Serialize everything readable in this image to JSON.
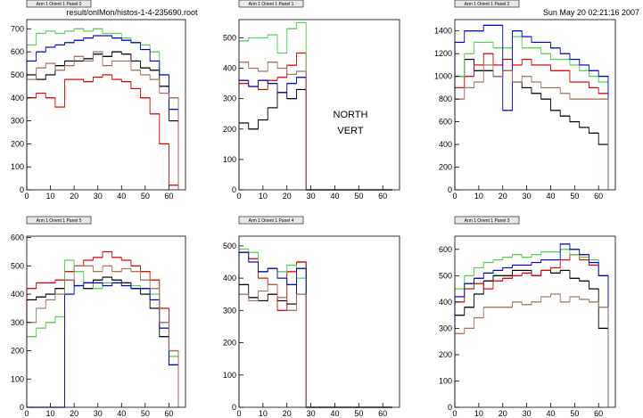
{
  "canvas": {
    "file": "result/onlMon/histos-1-4-235690.root",
    "date": "Sun May 20 02:21:16 2007"
  },
  "chart_data": [
    {
      "type": "histogram",
      "title": "Arm 1 Orient 1 Panel 0",
      "bins": [
        0,
        4,
        8,
        12,
        16,
        20,
        24,
        28,
        32,
        36,
        40,
        44,
        48,
        52,
        56,
        60,
        64
      ],
      "xlim": [
        0,
        67
      ],
      "xticks": [
        0,
        10,
        20,
        30,
        40,
        50,
        60
      ],
      "ylim": [
        0,
        740
      ],
      "yticks": [
        0,
        100,
        200,
        300,
        400,
        500,
        600,
        700
      ],
      "series": [
        {
          "color": "#000000",
          "values": [
            500,
            480,
            500,
            540,
            560,
            560,
            570,
            590,
            580,
            600,
            590,
            560,
            530,
            520,
            450,
            300
          ]
        },
        {
          "color": "#dd0000",
          "values": [
            400,
            420,
            400,
            360,
            480,
            480,
            470,
            490,
            500,
            480,
            470,
            440,
            400,
            330,
            200,
            20
          ]
        },
        {
          "color": "#55cc55",
          "values": [
            630,
            680,
            690,
            680,
            690,
            700,
            690,
            700,
            680,
            680,
            660,
            640,
            630,
            600,
            500,
            400
          ]
        },
        {
          "color": "#0000cc",
          "values": [
            560,
            600,
            620,
            630,
            640,
            650,
            660,
            670,
            670,
            660,
            650,
            640,
            610,
            560,
            500,
            350
          ]
        },
        {
          "color": "#a07060",
          "values": [
            480,
            530,
            550,
            520,
            540,
            580,
            560,
            600,
            540,
            560,
            560,
            520,
            500,
            480,
            420,
            400
          ]
        }
      ]
    },
    {
      "type": "histogram",
      "title": "Arm 1 Orient 1 Panel 1",
      "annotations": [
        "NORTH",
        "VERT"
      ],
      "bins": [
        0,
        4,
        8,
        12,
        16,
        20,
        24,
        28,
        32,
        36,
        40,
        44,
        48,
        52,
        56,
        60,
        64
      ],
      "xlim": [
        0,
        67
      ],
      "xticks": [
        0,
        10,
        20,
        30,
        40,
        50,
        60
      ],
      "ylim": [
        0,
        560
      ],
      "yticks": [
        0,
        100,
        200,
        300,
        400,
        500
      ],
      "series": [
        {
          "color": "#000000",
          "values": [
            220,
            200,
            230,
            270,
            320,
            300,
            330,
            0,
            0,
            0,
            0,
            0,
            0,
            0,
            0,
            0
          ]
        },
        {
          "color": "#dd0000",
          "values": [
            350,
            340,
            330,
            360,
            370,
            410,
            450,
            0,
            0,
            0,
            0,
            0,
            0,
            0,
            0,
            0
          ]
        },
        {
          "color": "#55cc55",
          "values": [
            490,
            500,
            500,
            510,
            450,
            530,
            550,
            0,
            0,
            0,
            0,
            0,
            0,
            0,
            0,
            0
          ]
        },
        {
          "color": "#0000cc",
          "values": [
            360,
            340,
            360,
            350,
            320,
            350,
            370,
            0,
            0,
            0,
            0,
            0,
            0,
            0,
            0,
            0
          ]
        },
        {
          "color": "#a07060",
          "values": [
            420,
            400,
            390,
            420,
            400,
            380,
            390,
            0,
            0,
            0,
            0,
            0,
            0,
            0,
            0,
            0
          ]
        }
      ]
    },
    {
      "type": "histogram",
      "title": "Arm 1 Orient 1 Panel 2",
      "bins": [
        0,
        4,
        8,
        12,
        16,
        20,
        24,
        28,
        32,
        36,
        40,
        44,
        48,
        52,
        56,
        60,
        64
      ],
      "xlim": [
        0,
        67
      ],
      "xticks": [
        0,
        10,
        20,
        30,
        40,
        50,
        60
      ],
      "ylim": [
        0,
        1500
      ],
      "yticks": [
        0,
        200,
        400,
        600,
        800,
        1000,
        1200,
        1400
      ],
      "series": [
        {
          "color": "#000000",
          "values": [
            1000,
            1150,
            1050,
            1050,
            1000,
            1050,
            950,
            900,
            850,
            800,
            700,
            650,
            600,
            550,
            500,
            400
          ]
        },
        {
          "color": "#dd0000",
          "values": [
            900,
            1000,
            1100,
            1200,
            1100,
            1150,
            1100,
            1150,
            1100,
            1100,
            1050,
            1050,
            950,
            950,
            900,
            850
          ]
        },
        {
          "color": "#55cc55",
          "values": [
            1000,
            1200,
            1300,
            1300,
            1250,
            1250,
            1350,
            1250,
            1250,
            1200,
            1150,
            1150,
            1100,
            1050,
            1000,
            950
          ]
        },
        {
          "color": "#0000cc",
          "values": [
            1300,
            1400,
            1400,
            1450,
            1450,
            700,
            1400,
            1350,
            1300,
            1300,
            1250,
            1200,
            1150,
            1100,
            1050,
            1000
          ]
        },
        {
          "color": "#a07060",
          "values": [
            800,
            900,
            950,
            1100,
            1000,
            1050,
            950,
            1000,
            950,
            900,
            900,
            850,
            800,
            800,
            800,
            800
          ]
        }
      ]
    },
    {
      "type": "histogram",
      "title": "Arm 1 Orient 1 Panel 5",
      "bins": [
        0,
        4,
        8,
        12,
        16,
        20,
        24,
        28,
        32,
        36,
        40,
        44,
        48,
        52,
        56,
        60,
        64
      ],
      "xlim": [
        0,
        67
      ],
      "xticks": [
        0,
        10,
        20,
        30,
        40,
        50,
        60
      ],
      "ylim": [
        0,
        605
      ],
      "yticks": [
        0,
        100,
        200,
        300,
        400,
        500,
        600
      ],
      "series": [
        {
          "color": "#000000",
          "values": [
            380,
            390,
            400,
            420,
            450,
            430,
            420,
            450,
            460,
            450,
            440,
            420,
            400,
            350,
            250,
            150
          ]
        },
        {
          "color": "#dd0000",
          "values": [
            420,
            440,
            440,
            450,
            480,
            500,
            520,
            530,
            550,
            530,
            520,
            500,
            480,
            450,
            350,
            200
          ]
        },
        {
          "color": "#55cc55",
          "values": [
            250,
            280,
            300,
            320,
            520,
            480,
            440,
            420,
            440,
            440,
            430,
            430,
            420,
            400,
            300,
            180
          ]
        },
        {
          "color": "#0000cc",
          "values": [
            0,
            0,
            0,
            0,
            400,
            430,
            440,
            440,
            430,
            440,
            430,
            420,
            420,
            380,
            280,
            150
          ]
        },
        {
          "color": "#a07060",
          "values": [
            300,
            350,
            380,
            400,
            450,
            500,
            500,
            480,
            500,
            480,
            490,
            480,
            450,
            420,
            300,
            200
          ]
        }
      ]
    },
    {
      "type": "histogram",
      "title": "Arm 1 Orient 1 Panel 4",
      "bins": [
        0,
        4,
        8,
        12,
        16,
        20,
        24,
        28,
        32,
        36,
        40,
        44,
        48,
        52,
        56,
        60,
        64
      ],
      "xlim": [
        0,
        67
      ],
      "xticks": [
        0,
        10,
        20,
        30,
        40,
        50,
        60
      ],
      "ylim": [
        0,
        530
      ],
      "yticks": [
        0,
        100,
        200,
        300,
        400,
        500
      ],
      "series": [
        {
          "color": "#000000",
          "values": [
            380,
            340,
            330,
            350,
            330,
            320,
            450,
            0,
            0,
            0,
            0,
            0,
            0,
            0,
            0,
            0
          ]
        },
        {
          "color": "#dd0000",
          "values": [
            480,
            460,
            400,
            380,
            300,
            420,
            450,
            0,
            0,
            0,
            0,
            0,
            0,
            0,
            0,
            0
          ]
        },
        {
          "color": "#55cc55",
          "values": [
            490,
            480,
            420,
            430,
            420,
            440,
            400,
            0,
            0,
            0,
            0,
            0,
            0,
            0,
            0,
            0
          ]
        },
        {
          "color": "#0000cc",
          "values": [
            480,
            450,
            420,
            430,
            400,
            380,
            430,
            0,
            0,
            0,
            0,
            0,
            0,
            0,
            0,
            0
          ]
        },
        {
          "color": "#a07060",
          "values": [
            350,
            330,
            360,
            380,
            340,
            300,
            350,
            0,
            0,
            0,
            0,
            0,
            0,
            0,
            0,
            0
          ]
        }
      ]
    },
    {
      "type": "histogram",
      "title": "Arm 1 Orient 1 Panel 3",
      "bins": [
        0,
        4,
        8,
        12,
        16,
        20,
        24,
        28,
        32,
        36,
        40,
        44,
        48,
        52,
        56,
        60,
        64
      ],
      "xlim": [
        0,
        67
      ],
      "xticks": [
        0,
        10,
        20,
        30,
        40,
        50,
        60
      ],
      "ylim": [
        0,
        650
      ],
      "yticks": [
        0,
        100,
        200,
        300,
        400,
        500,
        600
      ],
      "series": [
        {
          "color": "#000000",
          "values": [
            350,
            380,
            430,
            480,
            500,
            500,
            520,
            520,
            500,
            520,
            510,
            520,
            490,
            480,
            450,
            300
          ]
        },
        {
          "color": "#dd0000",
          "values": [
            400,
            450,
            470,
            450,
            480,
            490,
            500,
            510,
            500,
            520,
            530,
            560,
            580,
            560,
            540,
            500
          ]
        },
        {
          "color": "#55cc55",
          "values": [
            450,
            500,
            530,
            550,
            560,
            570,
            580,
            570,
            580,
            590,
            590,
            600,
            580,
            570,
            560,
            500
          ]
        },
        {
          "color": "#0000cc",
          "values": [
            420,
            470,
            490,
            510,
            520,
            530,
            540,
            540,
            550,
            560,
            560,
            620,
            600,
            580,
            550,
            500
          ]
        },
        {
          "color": "#a07060",
          "values": [
            280,
            300,
            340,
            380,
            380,
            380,
            400,
            390,
            400,
            420,
            430,
            400,
            420,
            410,
            400,
            380
          ]
        }
      ]
    }
  ]
}
